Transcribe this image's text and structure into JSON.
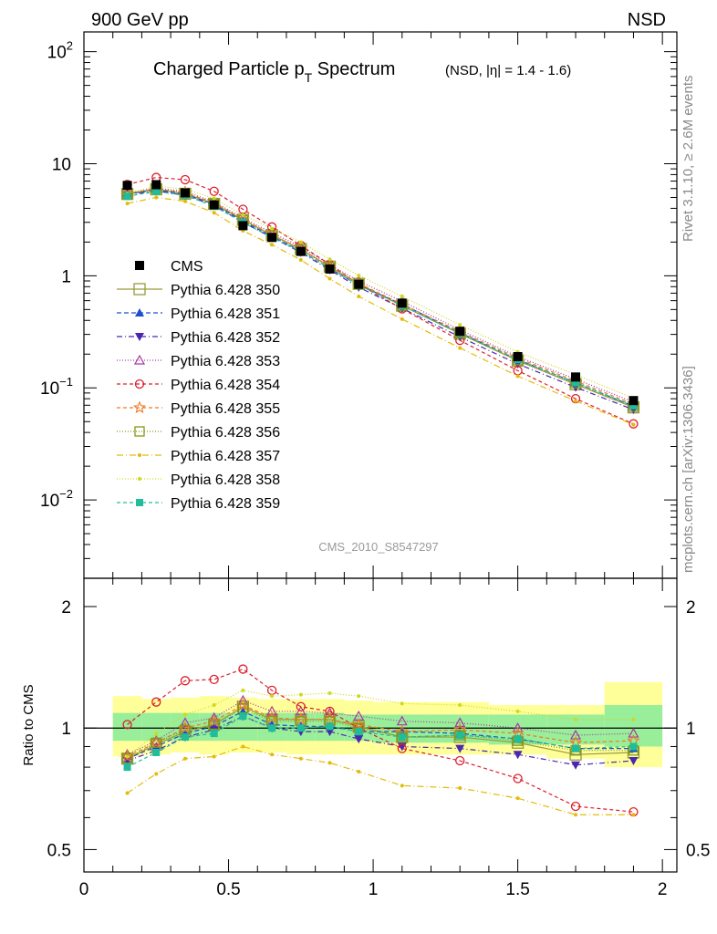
{
  "header": {
    "left": "900 GeV pp",
    "right": "NSD"
  },
  "side_labels": {
    "rivet": "Rivet 3.1.10, ≥ 2.6M events",
    "mcplots": "mcplots.cern.ch [arXiv:1306.3436]"
  },
  "chart_data": {
    "type": "line",
    "title_main": "Charged Particle p",
    "title_sub": "T",
    "title_main2": " Spectrum",
    "title_small": "(NSD, |η| = 1.4 - 1.6)",
    "watermark": "CMS_2010_S8547297",
    "top_panel": {
      "yscale": "log",
      "ylim": [
        0.002,
        150
      ],
      "y_ticks": [
        {
          "value": 100,
          "base": "10",
          "exp": "2"
        },
        {
          "value": 10,
          "base": "10",
          "exp": ""
        },
        {
          "value": 1,
          "base": "1",
          "exp": ""
        },
        {
          "value": 0.1,
          "base": "10",
          "exp": "−1"
        },
        {
          "value": 0.01,
          "base": "10",
          "exp": "−2"
        }
      ]
    },
    "ratio_panel": {
      "ylabel": "Ratio to CMS",
      "yscale": "log",
      "ylim": [
        0.44,
        2.35
      ],
      "y_ticks": [
        {
          "value": 2,
          "label": "2"
        },
        {
          "value": 1,
          "label": "1"
        },
        {
          "value": 0.5,
          "label": "0.5"
        }
      ]
    },
    "xlim": [
      0,
      2.05
    ],
    "x_ticks": [
      {
        "value": 0,
        "label": "0"
      },
      {
        "value": 0.5,
        "label": "0.5"
      },
      {
        "value": 1,
        "label": "1"
      },
      {
        "value": 1.5,
        "label": "1.5"
      },
      {
        "value": 2,
        "label": "2"
      }
    ],
    "x": [
      0.15,
      0.25,
      0.35,
      0.45,
      0.55,
      0.65,
      0.75,
      0.85,
      0.95,
      1.1,
      1.3,
      1.5,
      1.7,
      1.9
    ],
    "cms": {
      "name": "CMS",
      "values": [
        6.4,
        6.5,
        5.5,
        4.3,
        2.8,
        2.2,
        1.65,
        1.15,
        0.84,
        0.57,
        0.32,
        0.19,
        0.125,
        0.077
      ]
    },
    "bands": {
      "edges": [
        0.1,
        0.2,
        0.3,
        0.4,
        0.5,
        0.6,
        0.7,
        0.8,
        0.9,
        1.0,
        1.2,
        1.4,
        1.6,
        1.8,
        2.0
      ],
      "yellow_hi": [
        1.2,
        1.18,
        1.19,
        1.2,
        1.19,
        1.18,
        1.18,
        1.18,
        1.17,
        1.16,
        1.16,
        1.14,
        1.14,
        1.3
      ],
      "yellow_lo": [
        0.85,
        0.86,
        0.87,
        0.86,
        0.87,
        0.87,
        0.86,
        0.86,
        0.86,
        0.86,
        0.86,
        0.86,
        0.84,
        0.8
      ],
      "green_hi": [
        1.09,
        1.09,
        1.09,
        1.09,
        1.09,
        1.09,
        1.09,
        1.09,
        1.08,
        1.08,
        1.08,
        1.08,
        1.08,
        1.14
      ],
      "green_lo": [
        0.93,
        0.93,
        0.93,
        0.93,
        0.93,
        0.93,
        0.93,
        0.93,
        0.93,
        0.92,
        0.92,
        0.91,
        0.91,
        0.9
      ]
    },
    "series": [
      {
        "name": "Pythia 6.428 350",
        "color": "#9a9a3b",
        "dash": "",
        "marker": "open-square",
        "size": 6,
        "ratio": [
          0.84,
          0.91,
          0.98,
          1.02,
          1.13,
          1.05,
          1.05,
          1.05,
          1.01,
          0.95,
          0.95,
          0.92,
          0.86,
          0.87
        ],
        "step": true
      },
      {
        "name": "Pythia 6.428 351",
        "color": "#1b4fcf",
        "dash": "5,3",
        "marker": "filled-triangle-up",
        "size": 5,
        "ratio": [
          0.84,
          0.9,
          0.97,
          1.01,
          1.1,
          1.02,
          1.01,
          1.01,
          0.98,
          0.98,
          0.97,
          0.94,
          0.89,
          0.89
        ]
      },
      {
        "name": "Pythia 6.428 352",
        "color": "#4a27b0",
        "dash": "6,3,1,3",
        "marker": "filled-triangle-down",
        "size": 5,
        "ratio": [
          0.83,
          0.88,
          0.95,
          0.99,
          1.07,
          1.0,
          0.98,
          0.98,
          0.94,
          0.9,
          0.89,
          0.86,
          0.81,
          0.83
        ]
      },
      {
        "name": "Pythia 6.428 353",
        "color": "#a43a9e",
        "dash": "1,2",
        "marker": "open-triangle-up",
        "size": 5,
        "ratio": [
          0.86,
          0.93,
          1.03,
          1.06,
          1.17,
          1.1,
          1.1,
          1.09,
          1.07,
          1.04,
          1.03,
          1.0,
          0.96,
          0.97
        ]
      },
      {
        "name": "Pythia 6.428 354",
        "color": "#dd1f2b",
        "dash": "4,3",
        "marker": "open-circle",
        "size": 4.5,
        "ratio": [
          1.02,
          1.16,
          1.31,
          1.32,
          1.4,
          1.24,
          1.13,
          1.1,
          1.0,
          0.89,
          0.83,
          0.75,
          0.64,
          0.62
        ]
      },
      {
        "name": "Pythia 6.428 355",
        "color": "#f07824",
        "dash": "4,3",
        "marker": "open-star",
        "size": 6,
        "ratio": [
          0.85,
          0.92,
          1.0,
          1.04,
          1.14,
          1.06,
          1.05,
          1.05,
          1.02,
          0.98,
          0.99,
          0.97,
          0.92,
          0.93
        ]
      },
      {
        "name": "Pythia 6.428 356",
        "color": "#7f9a16",
        "dash": "1,2",
        "marker": "open-square",
        "size": 5,
        "ratio": [
          0.84,
          0.92,
          0.99,
          1.02,
          1.12,
          1.04,
          1.04,
          1.04,
          1.0,
          0.95,
          0.96,
          0.93,
          0.88,
          0.88
        ]
      },
      {
        "name": "Pythia 6.428 357",
        "color": "#e3bb07",
        "dash": "7,3,1,3",
        "marker": "small-dot",
        "size": 2,
        "ratio": [
          0.69,
          0.77,
          0.84,
          0.85,
          0.9,
          0.86,
          0.84,
          0.82,
          0.78,
          0.72,
          0.71,
          0.67,
          0.61,
          0.61
        ]
      },
      {
        "name": "Pythia 6.428 358",
        "color": "#cfd91b",
        "dash": "1,2",
        "marker": "small-dot",
        "size": 2,
        "ratio": [
          0.85,
          0.97,
          1.08,
          1.14,
          1.24,
          1.2,
          1.21,
          1.22,
          1.2,
          1.15,
          1.14,
          1.1,
          1.05,
          1.05
        ]
      },
      {
        "name": "Pythia 6.428 359",
        "color": "#1fbd9a",
        "dash": "4,3",
        "marker": "filled-square",
        "size": 5,
        "ratio": [
          0.8,
          0.87,
          0.95,
          0.97,
          1.07,
          1.0,
          1.0,
          1.01,
          0.98,
          0.95,
          0.96,
          0.94,
          0.89,
          0.9
        ]
      }
    ]
  }
}
